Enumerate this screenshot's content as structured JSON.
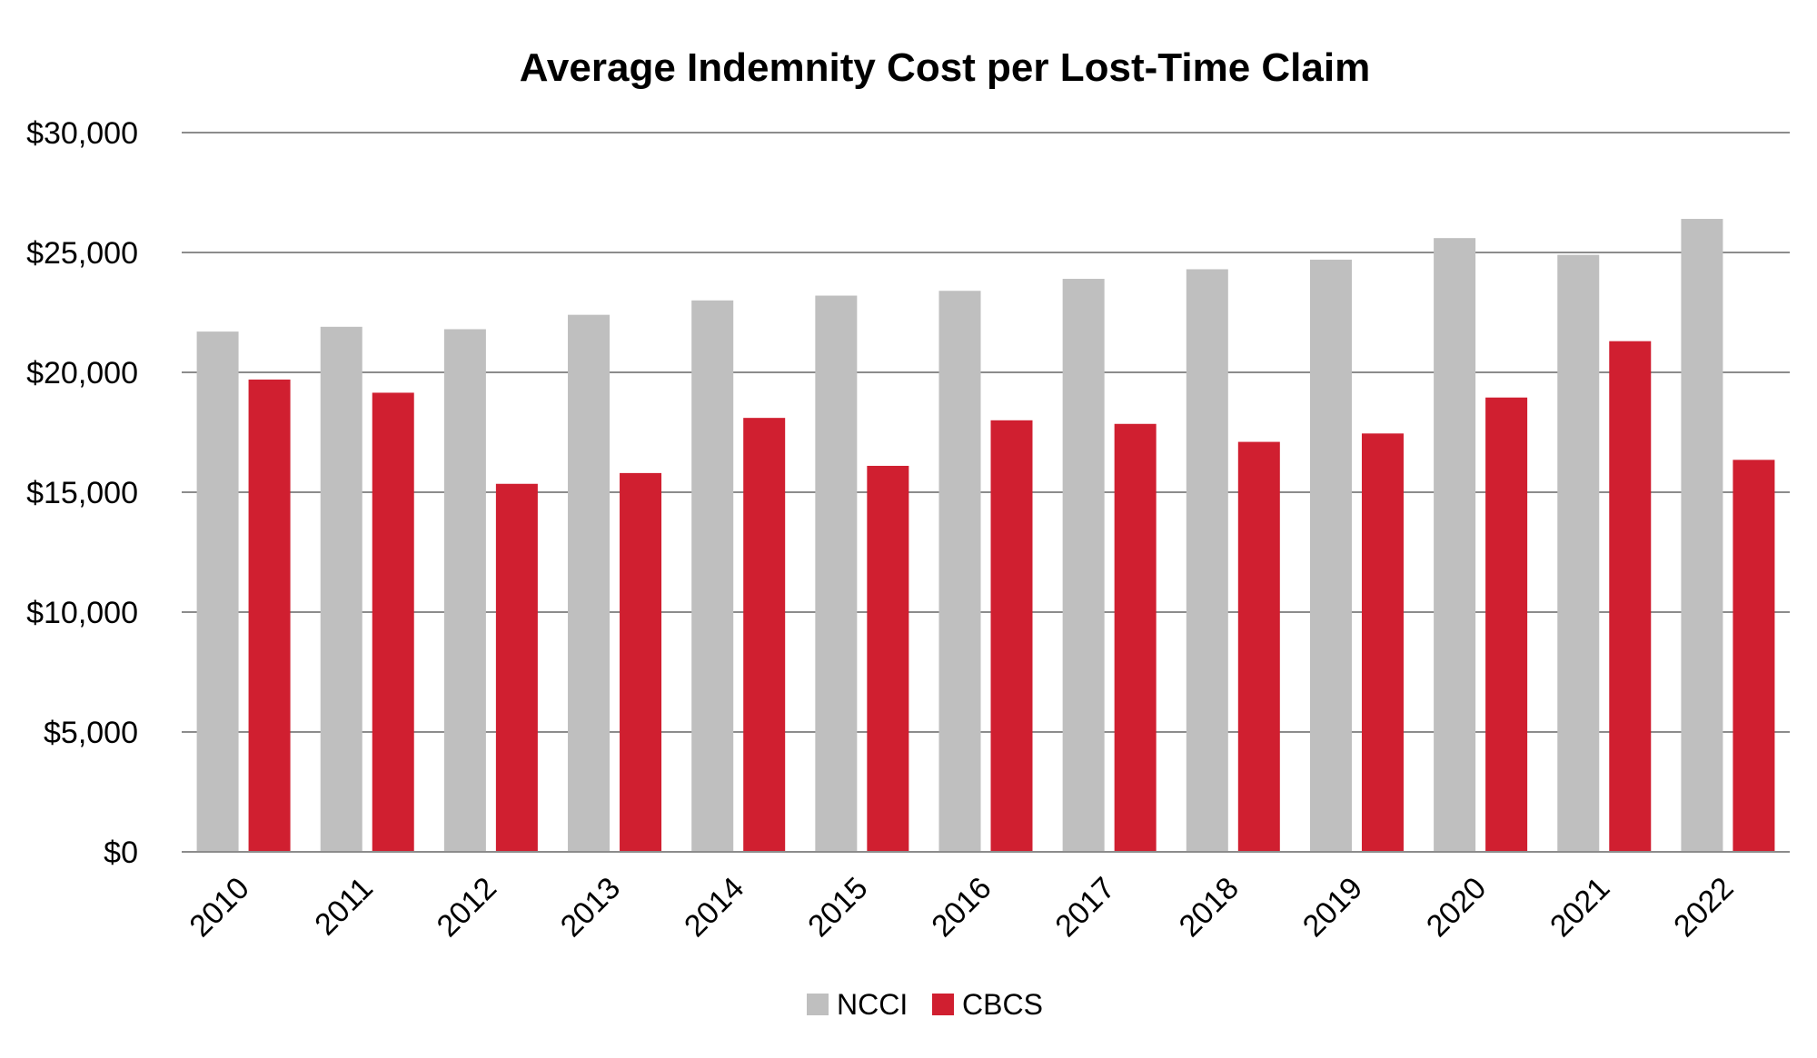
{
  "chart_data": {
    "type": "bar",
    "title": "Average Indemnity Cost per Lost-Time Claim",
    "xlabel": "",
    "ylabel": "",
    "categories": [
      "2010",
      "2011",
      "2012",
      "2013",
      "2014",
      "2015",
      "2016",
      "2017",
      "2018",
      "2019",
      "2020",
      "2021",
      "2022"
    ],
    "series": [
      {
        "name": "NCCI",
        "color": "#bfbfbf",
        "values": [
          21700,
          21900,
          21800,
          22400,
          23000,
          23200,
          23400,
          23900,
          24300,
          24700,
          25600,
          24900,
          26400
        ]
      },
      {
        "name": "CBCS",
        "color": "#d01f30",
        "values": [
          19700,
          19150,
          15350,
          15800,
          18100,
          16100,
          18000,
          17850,
          17100,
          17450,
          18950,
          21300,
          16350
        ]
      }
    ],
    "ylim": [
      0,
      30000
    ],
    "yticks": [
      0,
      5000,
      10000,
      15000,
      20000,
      25000,
      30000
    ],
    "ytick_labels": [
      "$0",
      "$5,000",
      "$10,000",
      "$15,000",
      "$20,000",
      "$25,000",
      "$30,000"
    ],
    "grid": true,
    "gridline_color": "#8c8c8c",
    "legend_position": "bottom-center"
  }
}
